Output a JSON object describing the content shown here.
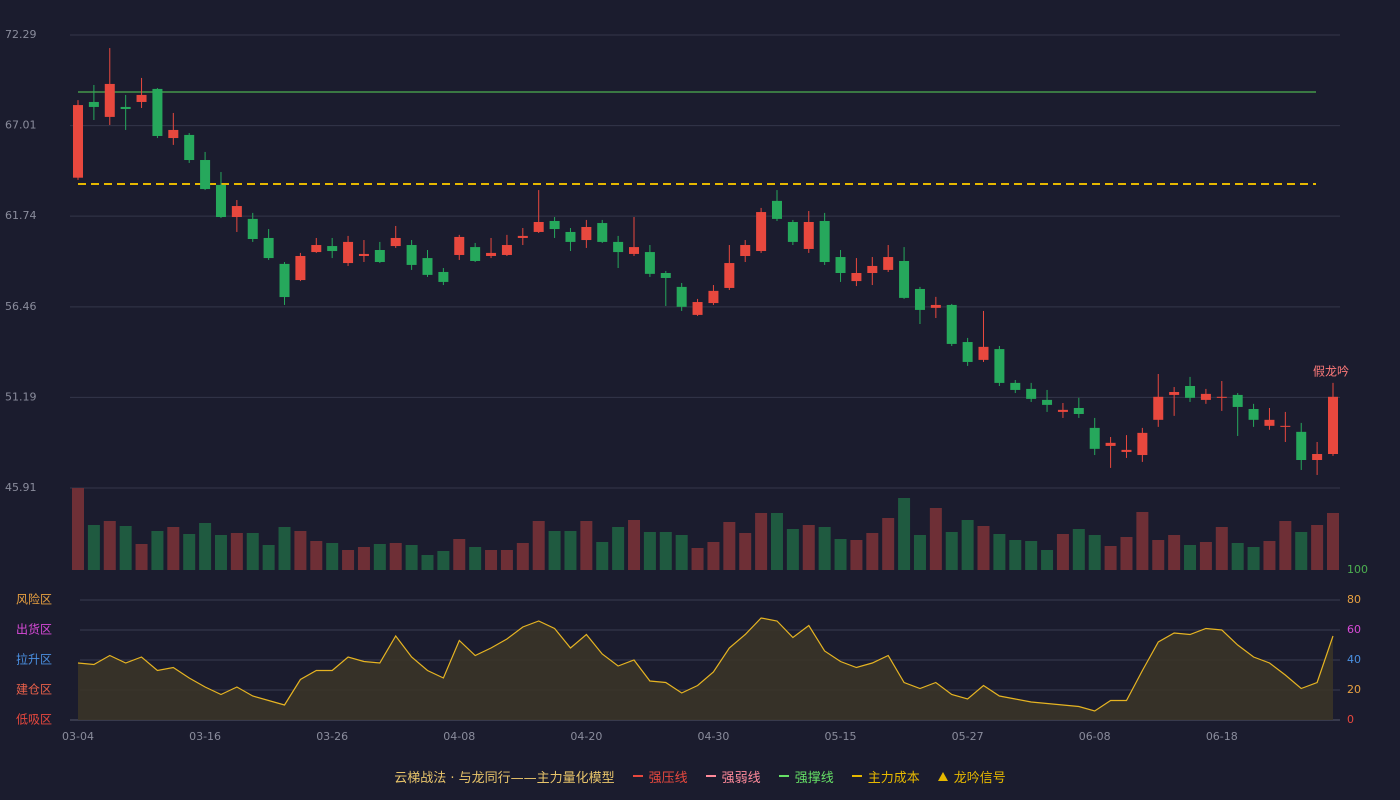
{
  "chart_data": [
    {
      "type": "candlestick",
      "categories": [
        "03-04",
        null,
        null,
        null,
        null,
        null,
        null,
        null,
        "03-16",
        null,
        null,
        null,
        null,
        null,
        null,
        null,
        "03-26",
        null,
        null,
        null,
        null,
        null,
        null,
        null,
        "04-08",
        null,
        null,
        null,
        null,
        null,
        null,
        null,
        "04-20",
        null,
        null,
        null,
        null,
        null,
        null,
        null,
        "04-30",
        null,
        null,
        null,
        null,
        null,
        null,
        null,
        "05-15",
        null,
        null,
        null,
        null,
        null,
        null,
        null,
        "05-27",
        null,
        null,
        null,
        null,
        null,
        null,
        null,
        "06-08",
        null,
        null,
        null,
        null,
        null,
        null,
        null,
        "06-18",
        null,
        null,
        null,
        null,
        null,
        null,
        null
      ],
      "open": [
        63.98,
        68.39,
        67.52,
        68.1,
        68.39,
        69.15,
        66.29,
        66.47,
        65.01,
        63.56,
        61.69,
        61.58,
        60.47,
        58.96,
        58.02,
        59.65,
        60.0,
        59.01,
        59.42,
        59.77,
        60.0,
        60.06,
        59.3,
        58.49,
        59.48,
        59.94,
        59.42,
        59.48,
        60.47,
        60.82,
        61.46,
        60.82,
        60.35,
        61.34,
        60.24,
        59.54,
        59.65,
        58.43,
        57.62,
        55.99,
        56.68,
        57.56,
        59.42,
        59.71,
        62.63,
        61.4,
        59.83,
        61.46,
        59.36,
        57.96,
        58.43,
        58.61,
        59.13,
        57.5,
        56.4,
        56.57,
        54.41,
        53.37,
        54.0,
        52.03,
        51.68,
        51.04,
        50.34,
        50.57,
        49.41,
        48.36,
        48.01,
        47.83,
        49.88,
        51.33,
        51.85,
        51.04,
        51.16,
        51.33,
        50.51,
        49.53,
        49.47,
        49.18,
        47.54,
        47.89
      ],
      "close": [
        68.21,
        68.1,
        69.44,
        67.98,
        68.8,
        66.41,
        66.76,
        65.01,
        63.32,
        61.69,
        62.33,
        60.41,
        59.3,
        57.03,
        59.42,
        60.06,
        59.71,
        60.24,
        59.54,
        59.07,
        60.47,
        58.9,
        58.32,
        57.91,
        60.53,
        59.13,
        59.6,
        60.06,
        60.59,
        61.4,
        60.99,
        60.24,
        61.11,
        60.24,
        59.65,
        59.94,
        58.38,
        58.14,
        56.46,
        56.74,
        57.39,
        59.01,
        60.06,
        61.98,
        61.58,
        60.24,
        61.4,
        59.07,
        58.43,
        58.43,
        58.84,
        59.36,
        56.98,
        56.28,
        56.57,
        54.3,
        53.25,
        54.13,
        52.03,
        51.62,
        51.1,
        50.75,
        50.46,
        50.22,
        48.19,
        48.54,
        48.13,
        49.12,
        51.22,
        51.5,
        51.16,
        51.39,
        51.22,
        50.63,
        49.88,
        49.88,
        49.53,
        47.54,
        47.89,
        51.22
      ],
      "high": [
        68.5,
        69.38,
        71.53,
        68.8,
        69.79,
        69.2,
        67.75,
        66.58,
        65.48,
        64.31,
        62.68,
        61.93,
        60.99,
        59.07,
        59.6,
        60.47,
        60.47,
        60.59,
        60.35,
        60.24,
        61.17,
        60.35,
        59.77,
        58.72,
        60.65,
        60.18,
        60.47,
        60.65,
        61.05,
        63.26,
        61.69,
        61.05,
        61.52,
        61.52,
        60.59,
        61.69,
        60.06,
        58.55,
        57.85,
        56.92,
        57.73,
        60.06,
        60.35,
        62.22,
        63.26,
        61.52,
        62.04,
        61.93,
        59.77,
        59.3,
        59.36,
        60.06,
        59.94,
        57.62,
        57.04,
        56.63,
        54.65,
        56.22,
        54.18,
        52.2,
        52.03,
        51.62,
        50.86,
        51.16,
        49.99,
        48.88,
        48.99,
        49.41,
        52.55,
        51.79,
        52.38,
        51.68,
        52.14,
        51.44,
        50.81,
        50.57,
        50.34,
        49.7,
        48.59,
        52.03
      ],
      "low": [
        63.85,
        67.34,
        67.05,
        66.76,
        68.04,
        66.29,
        65.89,
        64.84,
        63.26,
        61.63,
        60.82,
        60.24,
        59.19,
        56.57,
        57.96,
        59.6,
        59.3,
        58.84,
        59.07,
        59.01,
        59.89,
        58.61,
        58.2,
        57.73,
        59.19,
        59.07,
        59.3,
        59.42,
        60.06,
        60.76,
        60.47,
        59.71,
        59.89,
        60.18,
        58.72,
        59.42,
        58.2,
        56.51,
        56.22,
        55.93,
        56.57,
        57.44,
        59.07,
        59.6,
        61.46,
        60.06,
        59.6,
        58.9,
        57.91,
        57.67,
        57.73,
        58.49,
        56.92,
        55.46,
        55.81,
        54.18,
        53.02,
        53.25,
        51.85,
        51.44,
        50.92,
        50.34,
        49.99,
        49.99,
        47.83,
        47.08,
        47.66,
        47.43,
        49.47,
        50.11,
        50.92,
        50.81,
        50.4,
        48.94,
        49.47,
        49.3,
        48.59,
        46.96,
        46.67,
        47.78
      ],
      "up_color": "#e8483e",
      "down_color": "#26a85c",
      "ylim": [
        45.91,
        72.29
      ],
      "yticks": [
        45.91,
        51.19,
        56.46,
        61.74,
        67.01,
        72.29
      ],
      "grid": true,
      "levels": [
        {
          "name": "强撑线",
          "color": "#4caf50",
          "value": 68.97,
          "dash": false
        },
        {
          "name": "主力成本",
          "color": "#e6b800",
          "value": 63.61,
          "dash": true
        }
      ],
      "annotation": "假龙吟"
    },
    {
      "type": "bar",
      "values": [
        82,
        45,
        49,
        44,
        26,
        39,
        43,
        36,
        47,
        35,
        37,
        37,
        25,
        43,
        39,
        29,
        27,
        20,
        23,
        26,
        27,
        25,
        15,
        19,
        31,
        23,
        20,
        20,
        27,
        49,
        39,
        39,
        49,
        28,
        43,
        50,
        38,
        38,
        35,
        22,
        28,
        48,
        37,
        57,
        57,
        41,
        45,
        43,
        31,
        30,
        37,
        52,
        72,
        35,
        62,
        38,
        50,
        44,
        36,
        30,
        29,
        20,
        36,
        41,
        35,
        24,
        33,
        58,
        30,
        35,
        25,
        28,
        43,
        27,
        23,
        29,
        49,
        38,
        45,
        57
      ],
      "up_color": "#6e2f36",
      "down_color": "#1f5a40",
      "ylim": [
        0,
        82
      ]
    },
    {
      "type": "area",
      "values": [
        38,
        37,
        43,
        38,
        42,
        33,
        35,
        28,
        22,
        17,
        22,
        16,
        13,
        10,
        27,
        33,
        33,
        42,
        39,
        38,
        56,
        42,
        33,
        28,
        53,
        43,
        48,
        54,
        62,
        66,
        61,
        48,
        57,
        44,
        36,
        40,
        26,
        25,
        18,
        23,
        32,
        48,
        57,
        68,
        66,
        55,
        63,
        46,
        39,
        35,
        38,
        43,
        25,
        21,
        25,
        17,
        14,
        23,
        16,
        14,
        12,
        11,
        10,
        9,
        6,
        13,
        13,
        33,
        52,
        58,
        57,
        61,
        60,
        50,
        42,
        38,
        30,
        21,
        25,
        56
      ],
      "color": "#e6b422",
      "ylim": [
        0,
        100
      ],
      "yticks": [
        0,
        20,
        40,
        60,
        80,
        100
      ],
      "ytick_colors": [
        "#e8483e",
        "#e8a040",
        "#4a90e2",
        "#d84ad8",
        "#e8a040",
        "#4caf50"
      ],
      "zones": [
        {
          "value": 0,
          "label": "低吸区"
        },
        {
          "value": 20,
          "label": "建仓区"
        },
        {
          "value": 40,
          "label": "拉升区"
        },
        {
          "value": 60,
          "label": "出货区"
        },
        {
          "value": 80,
          "label": "风险区"
        }
      ],
      "zone_colors": [
        "#e8483e",
        "#e8604a",
        "#4a90e2",
        "#d84ad8",
        "#e8a040"
      ]
    }
  ],
  "legend": {
    "title": "云梯战法 · 与龙同行——主力量化模型",
    "items": [
      {
        "name": "强压线",
        "color": "#e8483e",
        "style": "solid"
      },
      {
        "name": "强弱线",
        "color": "#ff8a9a",
        "style": "dashed"
      },
      {
        "name": "强撑线",
        "color": "#66e066",
        "style": "solid"
      },
      {
        "name": "主力成本",
        "color": "#e6b800",
        "style": "dashed"
      },
      {
        "name": "龙吟信号",
        "color": "#e6b800",
        "style": "triangle"
      }
    ]
  }
}
